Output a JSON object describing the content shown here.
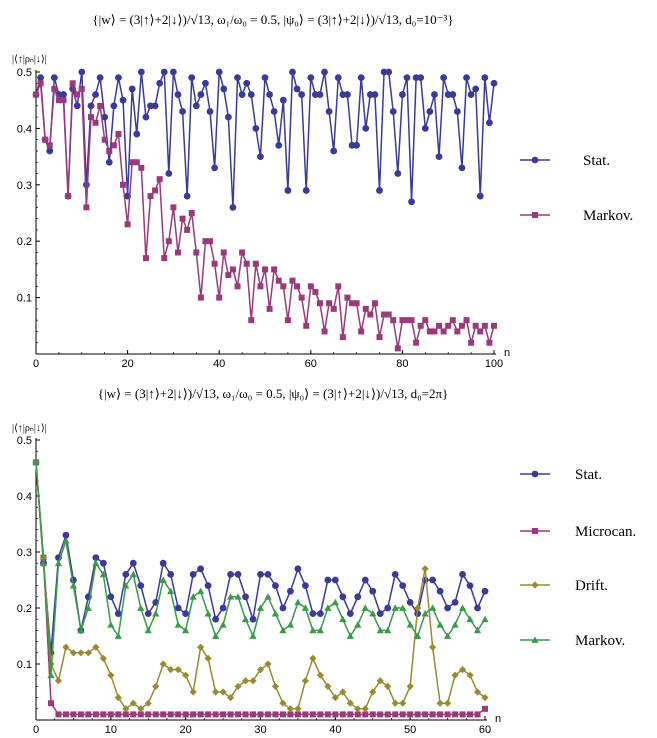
{
  "chart_data": [
    {
      "type": "line",
      "title": "{|w⟩ = (3|↑⟩+2|↓⟩)/√13, ω₁/ω₀ = 0.5, |ψ₀⟩ = (3|↑⟩+2|↓⟩)/√13, d₀=10⁻³}",
      "ylabel": "|⟨↑|ρₙ|↓⟩|",
      "xlabel": "n",
      "xlim": [
        0,
        100
      ],
      "ylim": [
        0,
        0.5
      ],
      "xticks": [
        "0",
        "20",
        "40",
        "60",
        "80",
        "100"
      ],
      "yticks": [
        "0.1",
        "0.2",
        "0.3",
        "0.4",
        "0.5"
      ],
      "legend_placement": "right",
      "series": [
        {
          "name": "Stat.",
          "color": "#3a3a9a",
          "marker": "circle",
          "values": [
            0.46,
            0.49,
            0.38,
            0.36,
            0.49,
            0.46,
            0.46,
            0.28,
            0.47,
            0.44,
            0.5,
            0.3,
            0.44,
            0.46,
            0.49,
            0.42,
            0.34,
            0.44,
            0.49,
            0.45,
            0.28,
            0.47,
            0.39,
            0.5,
            0.42,
            0.44,
            0.44,
            0.48,
            0.5,
            0.32,
            0.5,
            0.46,
            0.43,
            0.28,
            0.49,
            0.44,
            0.46,
            0.48,
            0.43,
            0.33,
            0.5,
            0.47,
            0.42,
            0.26,
            0.49,
            0.46,
            0.48,
            0.46,
            0.4,
            0.35,
            0.49,
            0.46,
            0.43,
            0.37,
            0.45,
            0.29,
            0.5,
            0.47,
            0.46,
            0.29,
            0.49,
            0.46,
            0.46,
            0.5,
            0.43,
            0.36,
            0.49,
            0.46,
            0.46,
            0.37,
            0.37,
            0.49,
            0.4,
            0.46,
            0.46,
            0.29,
            0.5,
            0.5,
            0.43,
            0.32,
            0.46,
            0.49,
            0.27,
            0.49,
            0.49,
            0.4,
            0.43,
            0.46,
            0.35,
            0.49,
            0.46,
            0.46,
            0.43,
            0.33,
            0.49,
            0.46,
            0.47,
            0.28,
            0.49,
            0.41,
            0.48
          ]
        },
        {
          "name": "Markov.",
          "color": "#9a3a7a",
          "marker": "square",
          "values": [
            0.46,
            0.48,
            0.38,
            0.37,
            0.47,
            0.45,
            0.45,
            0.28,
            0.48,
            0.46,
            0.47,
            0.26,
            0.42,
            0.41,
            0.44,
            0.38,
            0.36,
            0.37,
            0.39,
            0.3,
            0.23,
            0.34,
            0.34,
            0.33,
            0.17,
            0.28,
            0.29,
            0.31,
            0.17,
            0.2,
            0.26,
            0.18,
            0.24,
            0.22,
            0.25,
            0.18,
            0.1,
            0.2,
            0.2,
            0.16,
            0.1,
            0.18,
            0.14,
            0.15,
            0.12,
            0.18,
            0.16,
            0.06,
            0.16,
            0.12,
            0.15,
            0.08,
            0.15,
            0.13,
            0.12,
            0.06,
            0.13,
            0.12,
            0.1,
            0.05,
            0.12,
            0.11,
            0.09,
            0.04,
            0.09,
            0.08,
            0.12,
            0.03,
            0.1,
            0.09,
            0.09,
            0.04,
            0.08,
            0.07,
            0.09,
            0.03,
            0.07,
            0.07,
            0.06,
            0.01,
            0.06,
            0.06,
            0.06,
            0.02,
            0.05,
            0.06,
            0.04,
            0.04,
            0.05,
            0.04,
            0.05,
            0.06,
            0.04,
            0.05,
            0.06,
            0.02,
            0.05,
            0.04,
            0.05,
            0.02,
            0.05
          ]
        }
      ]
    },
    {
      "type": "line",
      "title": "{|w⟩ = (3|↑⟩+2|↓⟩)/√13, ω₁/ω₀ = 0.5, |ψ₀⟩ = (3|↑⟩+2|↓⟩)/√13, d₀=2π}",
      "ylabel": "|⟨↑|ρₙ|↓⟩|",
      "xlabel": "n",
      "xlim": [
        0,
        60
      ],
      "ylim": [
        0,
        0.5
      ],
      "xticks": [
        "0",
        "10",
        "20",
        "30",
        "40",
        "50",
        "60"
      ],
      "yticks": [
        "0.1",
        "0.2",
        "0.3",
        "0.4",
        "0.5"
      ],
      "legend_placement": "right",
      "series": [
        {
          "name": "Stat.",
          "color": "#3a3a9a",
          "marker": "circle",
          "values": [
            0.46,
            0.28,
            0.12,
            0.29,
            0.33,
            0.25,
            0.16,
            0.22,
            0.29,
            0.28,
            0.22,
            0.19,
            0.26,
            0.28,
            0.24,
            0.19,
            0.21,
            0.28,
            0.26,
            0.2,
            0.19,
            0.26,
            0.27,
            0.24,
            0.18,
            0.2,
            0.26,
            0.26,
            0.22,
            0.18,
            0.26,
            0.26,
            0.24,
            0.2,
            0.23,
            0.27,
            0.24,
            0.19,
            0.19,
            0.25,
            0.25,
            0.22,
            0.19,
            0.22,
            0.25,
            0.23,
            0.19,
            0.2,
            0.26,
            0.24,
            0.21,
            0.19,
            0.25,
            0.25,
            0.23,
            0.2,
            0.21,
            0.26,
            0.24,
            0.2,
            0.23
          ]
        },
        {
          "name": "Microcan.",
          "color": "#9a3a7a",
          "marker": "square",
          "values": [
            0.46,
            0.29,
            0.03,
            0.01,
            0.01,
            0.01,
            0.01,
            0.01,
            0.01,
            0.01,
            0.01,
            0.01,
            0.01,
            0.01,
            0.01,
            0.01,
            0.01,
            0.01,
            0.01,
            0.01,
            0.01,
            0.01,
            0.01,
            0.01,
            0.01,
            0.01,
            0.01,
            0.01,
            0.01,
            0.01,
            0.01,
            0.01,
            0.01,
            0.01,
            0.01,
            0.01,
            0.01,
            0.01,
            0.01,
            0.01,
            0.01,
            0.01,
            0.01,
            0.01,
            0.01,
            0.01,
            0.01,
            0.01,
            0.01,
            0.01,
            0.01,
            0.01,
            0.01,
            0.01,
            0.01,
            0.01,
            0.01,
            0.01,
            0.01,
            0.01,
            0.02
          ]
        },
        {
          "name": "Drift.",
          "color": "#9a8a30",
          "marker": "diamond",
          "values": [
            0.46,
            0.29,
            0.1,
            0.07,
            0.13,
            0.12,
            0.12,
            0.12,
            0.13,
            0.11,
            0.08,
            0.04,
            0.02,
            0.03,
            0.02,
            0.03,
            0.06,
            0.1,
            0.09,
            0.09,
            0.08,
            0.05,
            0.13,
            0.11,
            0.05,
            0.05,
            0.04,
            0.06,
            0.07,
            0.07,
            0.09,
            0.1,
            0.06,
            0.03,
            0.02,
            0.02,
            0.07,
            0.11,
            0.08,
            0.06,
            0.04,
            0.05,
            0.03,
            0.02,
            0.02,
            0.05,
            0.07,
            0.06,
            0.03,
            0.03,
            0.06,
            0.2,
            0.27,
            0.13,
            0.03,
            0.03,
            0.08,
            0.09,
            0.08,
            0.05,
            0.04
          ]
        },
        {
          "name": "Markov.",
          "color": "#3a9a4a",
          "marker": "triangle",
          "values": [
            0.46,
            0.28,
            0.08,
            0.28,
            0.32,
            0.24,
            0.16,
            0.2,
            0.28,
            0.26,
            0.17,
            0.15,
            0.24,
            0.26,
            0.2,
            0.16,
            0.19,
            0.25,
            0.23,
            0.17,
            0.16,
            0.22,
            0.23,
            0.19,
            0.15,
            0.17,
            0.22,
            0.22,
            0.18,
            0.15,
            0.2,
            0.22,
            0.19,
            0.16,
            0.17,
            0.21,
            0.2,
            0.16,
            0.16,
            0.2,
            0.21,
            0.18,
            0.15,
            0.17,
            0.2,
            0.19,
            0.16,
            0.16,
            0.2,
            0.2,
            0.17,
            0.15,
            0.19,
            0.2,
            0.17,
            0.15,
            0.17,
            0.2,
            0.18,
            0.16,
            0.18
          ]
        }
      ]
    }
  ]
}
